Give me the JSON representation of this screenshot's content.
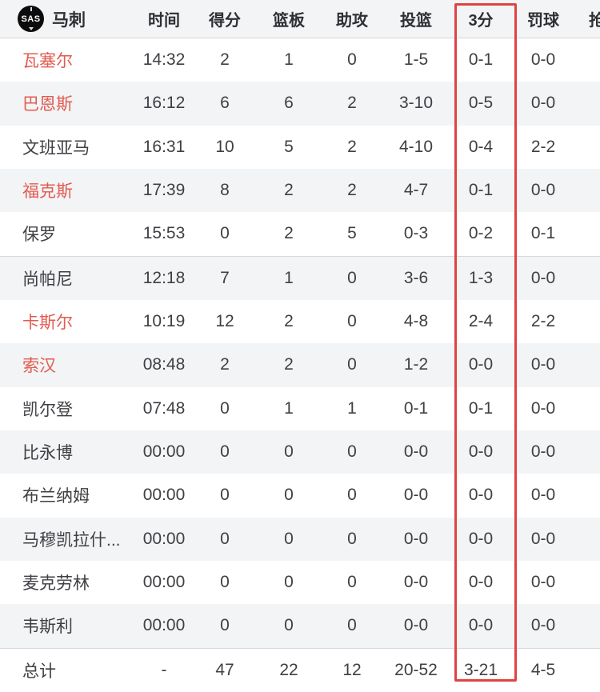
{
  "header": {
    "team_logo": "SAS",
    "team_name": "马刺",
    "columns": [
      "时间",
      "得分",
      "篮板",
      "助攻",
      "投篮",
      "3分",
      "罚球",
      "抢断"
    ]
  },
  "highlight": {
    "highlighted_column": "3分",
    "box_color": "#e04242"
  },
  "colors": {
    "on_court_name": "#e25b50",
    "row_alt_bg": "#f3f4f6",
    "header_bg": "#f3f4f6"
  },
  "players": [
    {
      "name": "瓦塞尔",
      "on_court": true,
      "time": "14:32",
      "points": "2",
      "rebounds": "1",
      "assists": "0",
      "fg": "1-5",
      "three_pt": "0-1",
      "ft": "0-0"
    },
    {
      "name": "巴恩斯",
      "on_court": true,
      "time": "16:12",
      "points": "6",
      "rebounds": "6",
      "assists": "2",
      "fg": "3-10",
      "three_pt": "0-5",
      "ft": "0-0"
    },
    {
      "name": "文班亚马",
      "on_court": false,
      "time": "16:31",
      "points": "10",
      "rebounds": "5",
      "assists": "2",
      "fg": "4-10",
      "three_pt": "0-4",
      "ft": "2-2"
    },
    {
      "name": "福克斯",
      "on_court": true,
      "time": "17:39",
      "points": "8",
      "rebounds": "2",
      "assists": "2",
      "fg": "4-7",
      "three_pt": "0-1",
      "ft": "0-0"
    },
    {
      "name": "保罗",
      "on_court": false,
      "time": "15:53",
      "points": "0",
      "rebounds": "2",
      "assists": "5",
      "fg": "0-3",
      "three_pt": "0-2",
      "ft": "0-1"
    },
    {
      "name": "尚帕尼",
      "on_court": false,
      "time": "12:18",
      "points": "7",
      "rebounds": "1",
      "assists": "0",
      "fg": "3-6",
      "three_pt": "1-3",
      "ft": "0-0"
    },
    {
      "name": "卡斯尔",
      "on_court": true,
      "time": "10:19",
      "points": "12",
      "rebounds": "2",
      "assists": "0",
      "fg": "4-8",
      "three_pt": "2-4",
      "ft": "2-2"
    },
    {
      "name": "索汉",
      "on_court": true,
      "time": "08:48",
      "points": "2",
      "rebounds": "2",
      "assists": "0",
      "fg": "1-2",
      "three_pt": "0-0",
      "ft": "0-0"
    },
    {
      "name": "凯尔登",
      "on_court": false,
      "time": "07:48",
      "points": "0",
      "rebounds": "1",
      "assists": "1",
      "fg": "0-1",
      "three_pt": "0-1",
      "ft": "0-0"
    },
    {
      "name": "比永博",
      "on_court": false,
      "time": "00:00",
      "points": "0",
      "rebounds": "0",
      "assists": "0",
      "fg": "0-0",
      "three_pt": "0-0",
      "ft": "0-0"
    },
    {
      "name": "布兰纳姆",
      "on_court": false,
      "time": "00:00",
      "points": "0",
      "rebounds": "0",
      "assists": "0",
      "fg": "0-0",
      "three_pt": "0-0",
      "ft": "0-0"
    },
    {
      "name": "马穆凯拉什...",
      "on_court": false,
      "time": "00:00",
      "points": "0",
      "rebounds": "0",
      "assists": "0",
      "fg": "0-0",
      "three_pt": "0-0",
      "ft": "0-0"
    },
    {
      "name": "麦克劳林",
      "on_court": false,
      "time": "00:00",
      "points": "0",
      "rebounds": "0",
      "assists": "0",
      "fg": "0-0",
      "three_pt": "0-0",
      "ft": "0-0"
    },
    {
      "name": "韦斯利",
      "on_court": false,
      "time": "00:00",
      "points": "0",
      "rebounds": "0",
      "assists": "0",
      "fg": "0-0",
      "three_pt": "0-0",
      "ft": "0-0"
    }
  ],
  "totals": {
    "name": "总计",
    "time": "-",
    "points": "47",
    "rebounds": "22",
    "assists": "12",
    "fg": "20-52",
    "three_pt": "3-21",
    "ft": "4-5"
  }
}
